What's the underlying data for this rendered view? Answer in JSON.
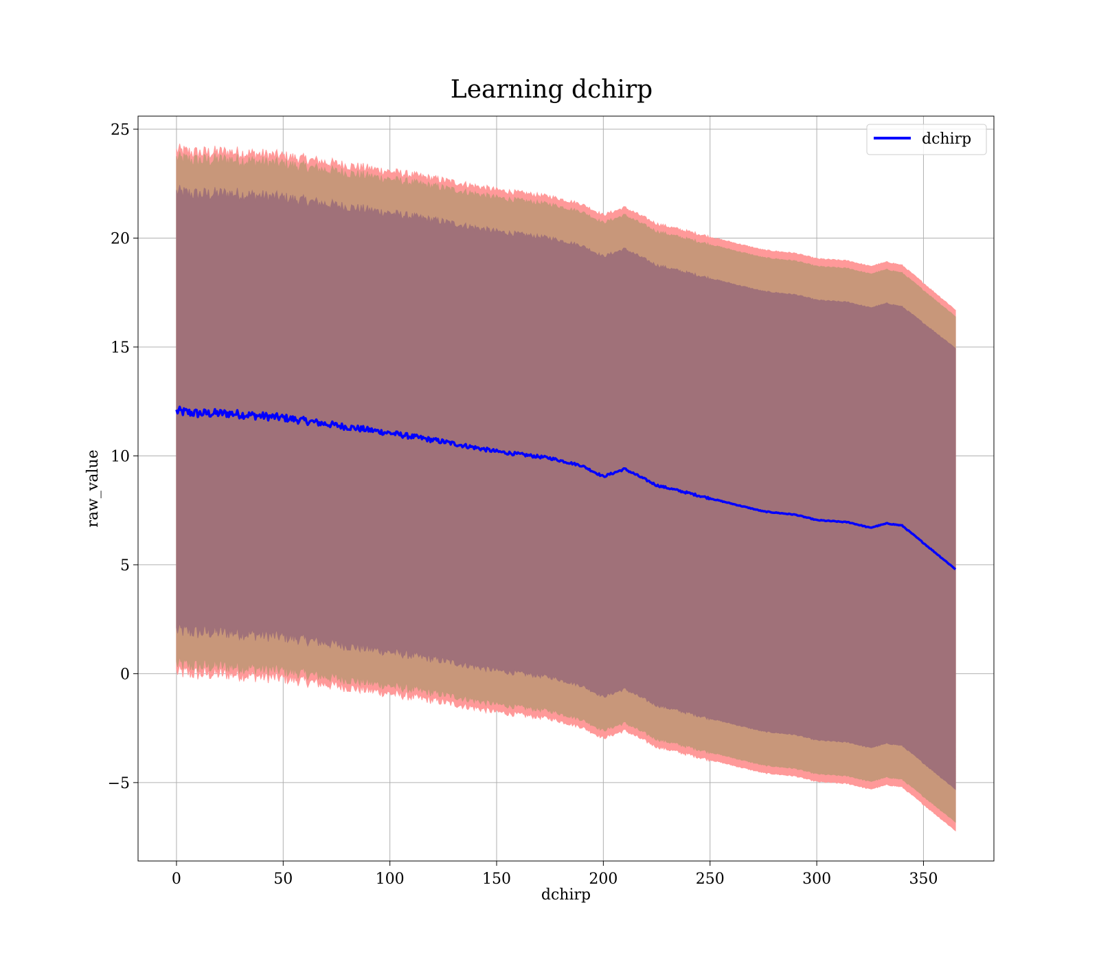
{
  "chart_data": {
    "type": "area",
    "title": "Learning dchirp",
    "xlabel": "dchirp",
    "ylabel": "raw_value",
    "xlim": [
      -18,
      383
    ],
    "ylim": [
      -8.6,
      25.6
    ],
    "xticks": [
      0,
      50,
      100,
      150,
      200,
      250,
      300,
      350
    ],
    "yticks": [
      -5,
      0,
      5,
      10,
      15,
      20,
      25
    ],
    "ytick_labels": [
      "−5",
      "0",
      "5",
      "10",
      "15",
      "20",
      "25"
    ],
    "grid": true,
    "legend": {
      "position": "top-right",
      "entries": [
        "dchirp"
      ]
    },
    "colors": {
      "mean_line": "#0000ff",
      "outer_band": "#ff9999",
      "middle_band": "#c8977a",
      "inner_band": "#a07179"
    },
    "series": [
      {
        "name": "dchirp",
        "role": "mean",
        "x": [
          0,
          10,
          25,
          50,
          75,
          100,
          125,
          150,
          175,
          190,
          200,
          210,
          225,
          250,
          275,
          290,
          300,
          315,
          325,
          333,
          340,
          365
        ],
        "y": [
          12.05,
          11.95,
          11.95,
          11.75,
          11.4,
          11.05,
          10.65,
          10.2,
          9.9,
          9.55,
          9.05,
          9.4,
          8.65,
          8.05,
          7.45,
          7.3,
          7.05,
          6.95,
          6.7,
          6.9,
          6.8,
          4.8
        ]
      },
      {
        "role": "band",
        "level": "outer",
        "x": [
          0,
          10,
          25,
          50,
          75,
          100,
          125,
          150,
          175,
          190,
          200,
          210,
          225,
          250,
          275,
          290,
          300,
          315,
          325,
          333,
          340,
          365
        ],
        "upper": [
          24.0,
          23.9,
          23.95,
          23.75,
          23.4,
          23.05,
          22.65,
          22.2,
          21.9,
          21.55,
          21.05,
          21.4,
          20.65,
          20.05,
          19.45,
          19.3,
          19.05,
          18.95,
          18.7,
          18.9,
          18.75,
          16.7
        ],
        "lower": [
          0.1,
          0.0,
          0.0,
          -0.2,
          -0.55,
          -0.9,
          -1.3,
          -1.75,
          -2.05,
          -2.45,
          -2.95,
          -2.6,
          -3.35,
          -3.95,
          -4.55,
          -4.7,
          -4.95,
          -5.05,
          -5.3,
          -5.1,
          -5.2,
          -7.2
        ]
      },
      {
        "role": "band",
        "level": "middle",
        "x": [
          0,
          10,
          25,
          50,
          75,
          100,
          125,
          150,
          175,
          190,
          200,
          210,
          225,
          250,
          275,
          290,
          300,
          315,
          325,
          333,
          340,
          365
        ],
        "upper": [
          23.65,
          23.55,
          23.6,
          23.4,
          23.05,
          22.7,
          22.3,
          21.85,
          21.55,
          21.2,
          20.7,
          21.05,
          20.3,
          19.7,
          19.1,
          18.95,
          18.7,
          18.6,
          18.35,
          18.55,
          18.4,
          16.4
        ],
        "lower": [
          0.45,
          0.35,
          0.35,
          0.15,
          -0.2,
          -0.55,
          -0.95,
          -1.4,
          -1.7,
          -2.1,
          -2.6,
          -2.25,
          -3.0,
          -3.6,
          -4.2,
          -4.35,
          -4.6,
          -4.7,
          -4.95,
          -4.75,
          -4.85,
          -6.8
        ]
      },
      {
        "role": "band",
        "level": "inner",
        "x": [
          0,
          10,
          25,
          50,
          75,
          100,
          125,
          150,
          175,
          190,
          200,
          210,
          225,
          250,
          275,
          290,
          300,
          315,
          325,
          333,
          340,
          365
        ],
        "upper": [
          22.1,
          22.0,
          22.05,
          21.85,
          21.5,
          21.15,
          20.75,
          20.3,
          20.0,
          19.65,
          19.15,
          19.5,
          18.75,
          18.15,
          17.55,
          17.4,
          17.15,
          17.05,
          16.8,
          17.0,
          16.85,
          14.95
        ],
        "lower": [
          2.0,
          1.9,
          1.9,
          1.7,
          1.35,
          1.0,
          0.6,
          0.15,
          -0.15,
          -0.55,
          -1.05,
          -0.7,
          -1.45,
          -2.05,
          -2.65,
          -2.8,
          -3.05,
          -3.15,
          -3.4,
          -3.2,
          -3.3,
          -5.3
        ]
      }
    ]
  }
}
